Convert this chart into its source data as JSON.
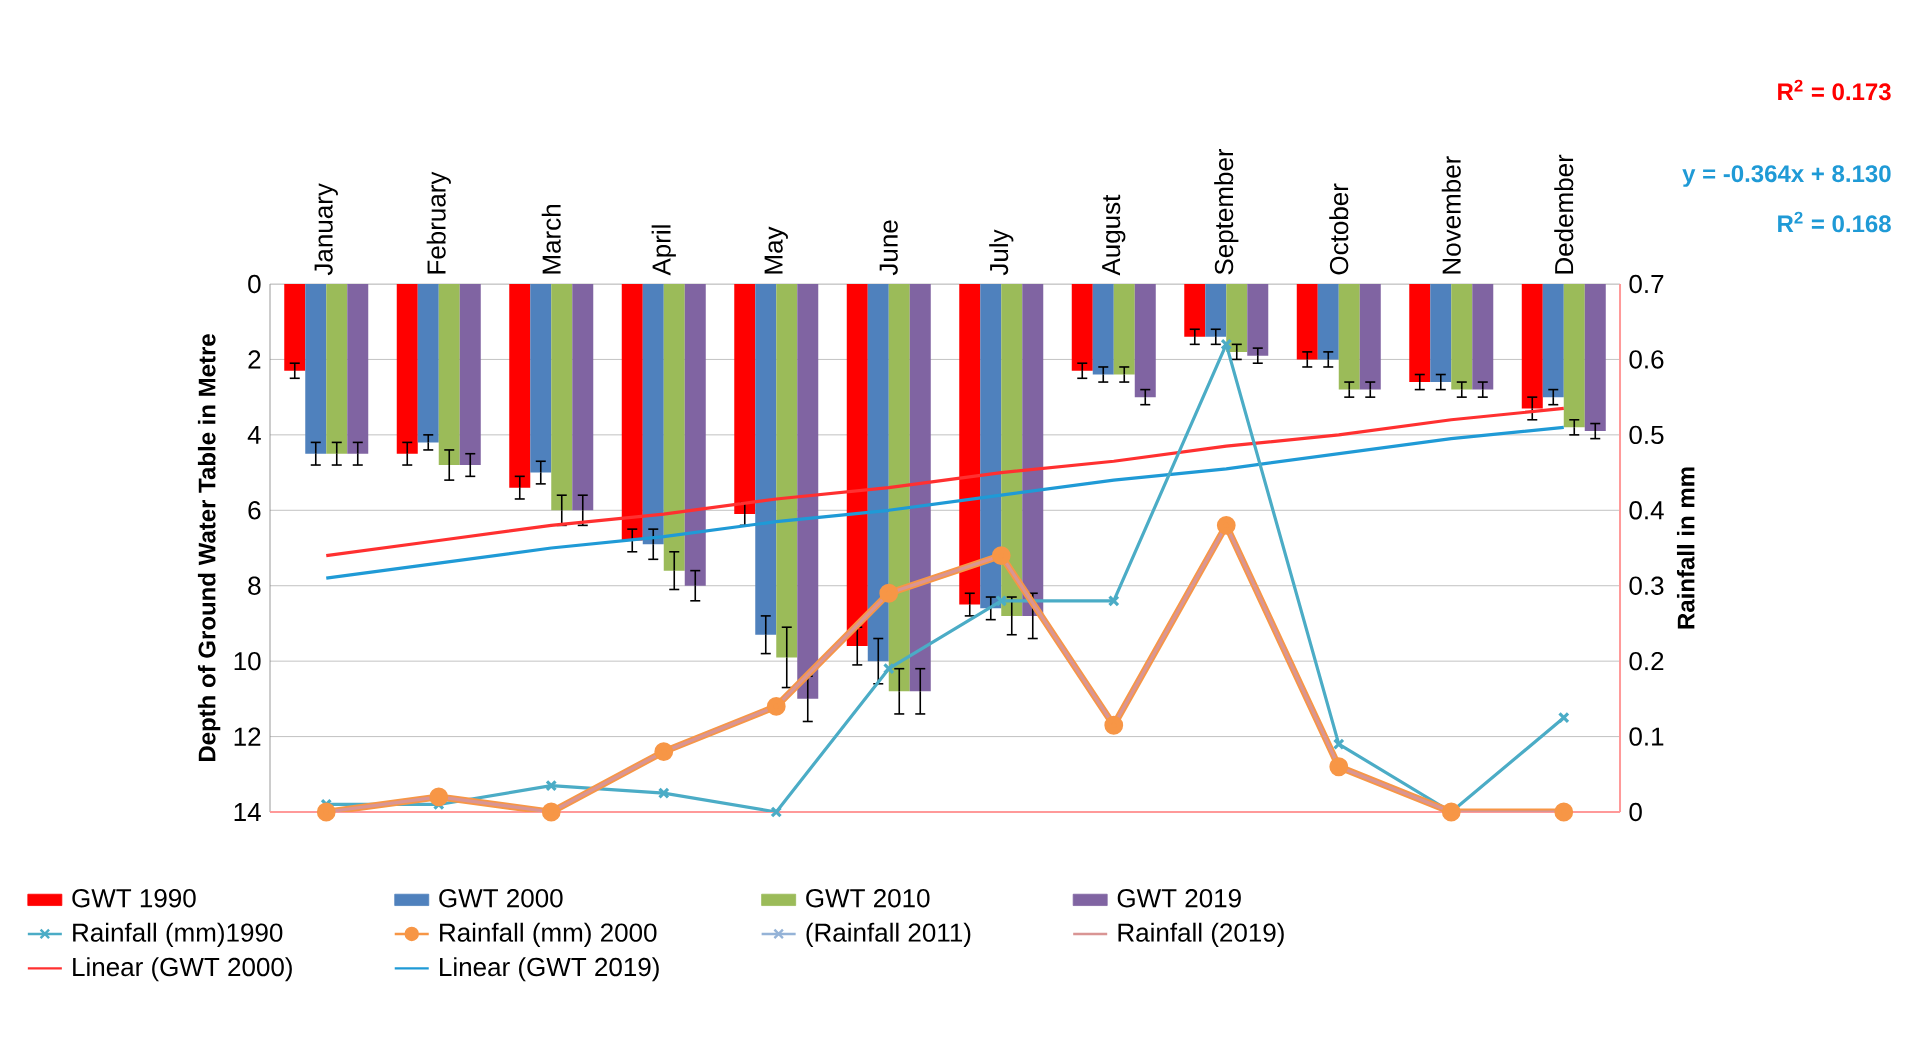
{
  "chart_data": {
    "type": "bar",
    "categories": [
      "January",
      "February",
      "March",
      "April",
      "May",
      "June",
      "July",
      "August",
      "September",
      "October",
      "November",
      "Dedember"
    ],
    "ylabel": "Depth of Ground Water Table in Metre",
    "y2label": "Rainfall in mm",
    "ylim": [
      14,
      0
    ],
    "yticks": [
      0,
      2,
      4,
      6,
      8,
      10,
      12,
      14
    ],
    "y2lim": [
      0,
      0.7
    ],
    "y2ticks": [
      0,
      0.1,
      0.2,
      0.3,
      0.4,
      0.5,
      0.6,
      0.7
    ],
    "grid": "y",
    "legend": "bottom",
    "annotations": [
      "R$^{2}$ = 0.173",
      "y = -0.364x + 8.130",
      "R$^{2}$ = 0.168"
    ],
    "series": [
      {
        "name": "GWT 1990",
        "color": "#ff0000",
        "values": [
          2.3,
          4.5,
          5.4,
          6.8,
          6.1,
          9.6,
          8.5,
          2.3,
          1.4,
          2.0,
          2.6,
          3.3
        ],
        "errors": [
          0.2,
          0.3,
          0.3,
          0.3,
          0.3,
          0.5,
          0.3,
          0.2,
          0.2,
          0.2,
          0.2,
          0.3
        ]
      },
      {
        "name": "GWT 2000",
        "color": "#4f81bd",
        "values": [
          4.5,
          4.2,
          5.0,
          6.9,
          9.3,
          10.0,
          8.6,
          2.4,
          1.4,
          2.0,
          2.6,
          3.0
        ],
        "errors": [
          0.3,
          0.2,
          0.3,
          0.4,
          0.5,
          0.6,
          0.3,
          0.2,
          0.2,
          0.2,
          0.2,
          0.2
        ]
      },
      {
        "name": "GWT 2010",
        "color": "#9bbb59",
        "values": [
          4.5,
          4.8,
          6.0,
          7.6,
          9.9,
          10.8,
          8.8,
          2.4,
          1.8,
          2.8,
          2.8,
          3.8
        ],
        "errors": [
          0.3,
          0.4,
          0.4,
          0.5,
          0.8,
          0.6,
          0.5,
          0.2,
          0.2,
          0.2,
          0.2,
          0.2
        ]
      },
      {
        "name": "GWT 2019",
        "color": "#8064a2",
        "values": [
          4.5,
          4.8,
          6.0,
          8.0,
          11.0,
          10.8,
          8.8,
          3.0,
          1.9,
          2.8,
          2.8,
          3.9
        ],
        "errors": [
          0.3,
          0.3,
          0.4,
          0.4,
          0.6,
          0.6,
          0.6,
          0.2,
          0.2,
          0.2,
          0.2,
          0.2
        ]
      },
      {
        "name": "Rainfall (mm)1990",
        "type": "line",
        "axis": "y2",
        "color": "#4bacc6",
        "marker": "cross",
        "values": [
          0.01,
          0.01,
          0.035,
          0.025,
          0.0,
          0.19,
          0.28,
          0.28,
          0.62,
          0.09,
          0.0,
          0.125
        ]
      },
      {
        "name": "Rainfall (mm) 2000",
        "type": "line",
        "axis": "y2",
        "color": "#f79646",
        "marker": "circle",
        "values": [
          0.0,
          0.02,
          0.0,
          0.08,
          0.14,
          0.29,
          0.34,
          0.115,
          0.38,
          0.06,
          0.0,
          0.0
        ]
      },
      {
        "name": "(Rainfall 2011)",
        "type": "line",
        "axis": "y2",
        "color": "#95b3d7",
        "marker": "cross",
        "values": [
          null,
          null,
          null,
          null,
          null,
          null,
          null,
          null,
          null,
          null,
          null,
          null
        ]
      },
      {
        "name": "Rainfall (2019)",
        "type": "line",
        "axis": "y2",
        "color": "#d99594",
        "values": [
          0.0,
          0.02,
          0.0,
          0.08,
          0.14,
          0.29,
          0.34,
          0.115,
          0.38,
          0.06,
          0.0,
          0.0
        ]
      },
      {
        "name": "Linear (GWT 2000)",
        "type": "line",
        "color": "#ff3030",
        "values": [
          7.2,
          6.8,
          6.4,
          6.1,
          5.7,
          5.4,
          5.0,
          4.7,
          4.3,
          4.0,
          3.6,
          3.3
        ]
      },
      {
        "name": "Linear (GWT 2019)",
        "type": "line",
        "color": "#1f9ad6",
        "values": [
          7.8,
          7.4,
          7.0,
          6.7,
          6.3,
          6.0,
          5.6,
          5.2,
          4.9,
          4.5,
          4.1,
          3.8
        ]
      }
    ]
  }
}
